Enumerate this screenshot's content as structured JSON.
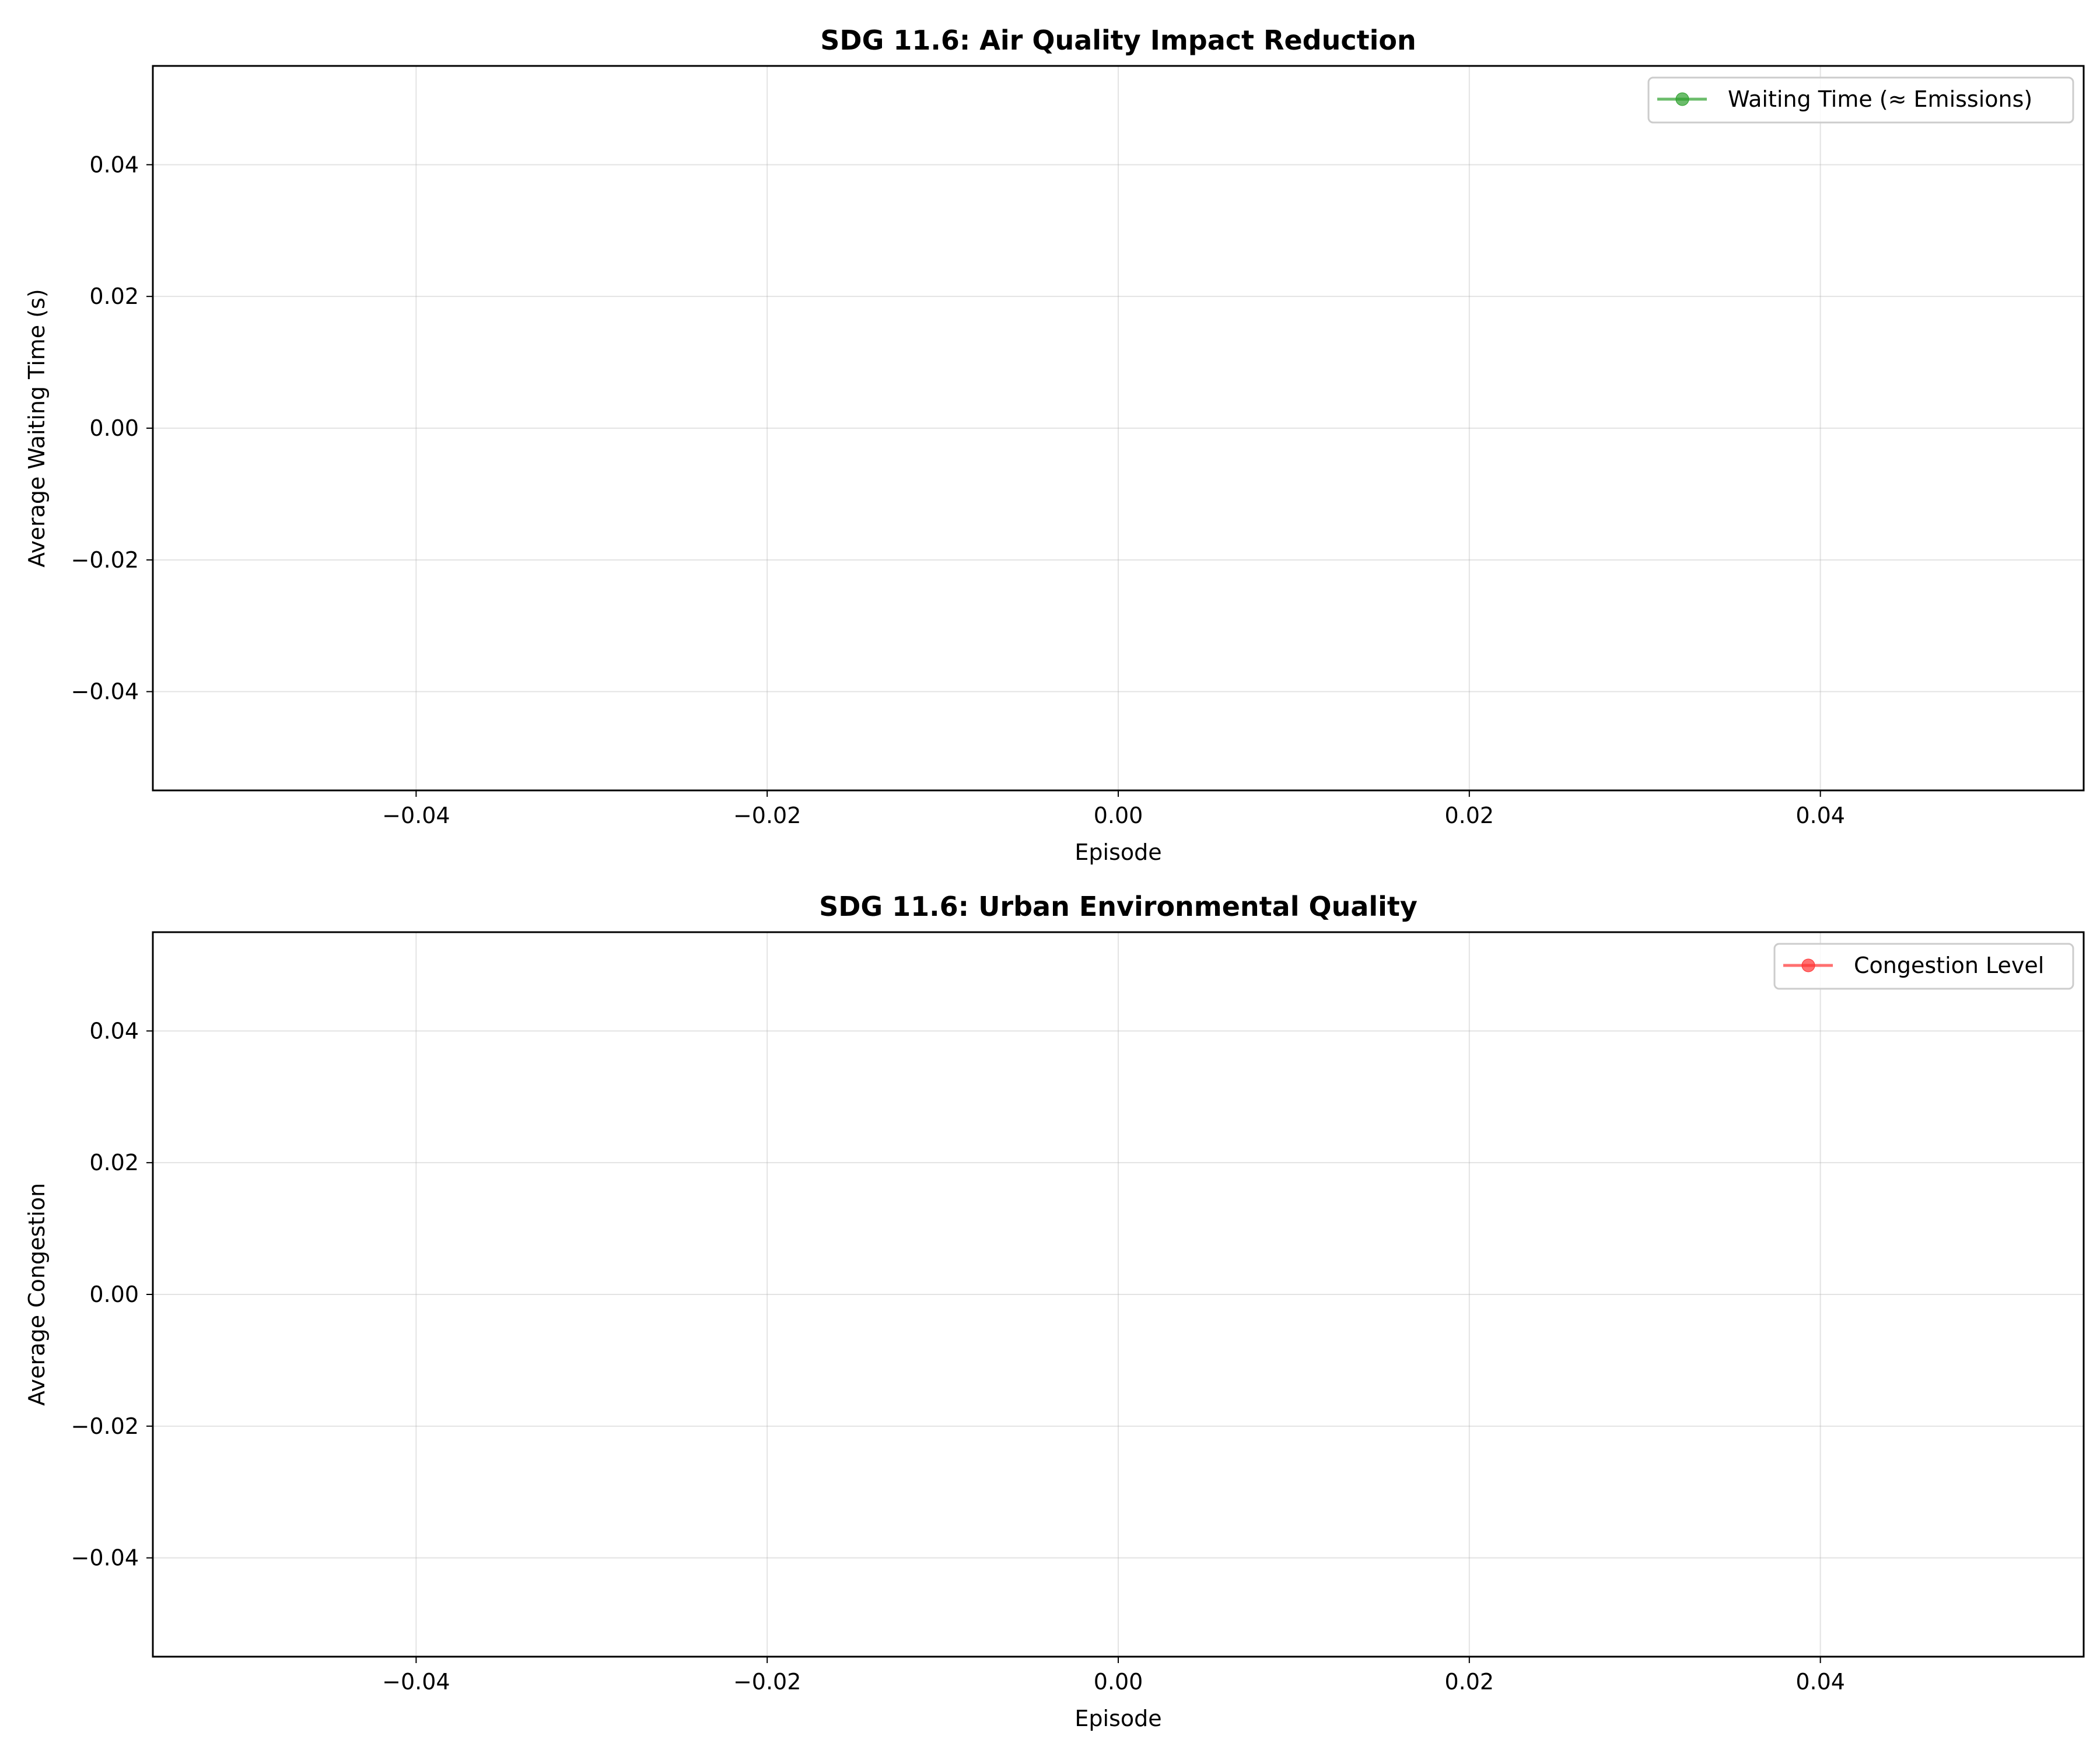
{
  "chart_data": [
    {
      "type": "line",
      "title": "SDG 11.6: Air Quality Impact Reduction",
      "xlabel": "Episode",
      "ylabel": "Average Waiting Time (s)",
      "xlim": [
        -0.055,
        0.055
      ],
      "ylim": [
        -0.055,
        0.055
      ],
      "xticks": [
        -0.04,
        -0.02,
        0.0,
        0.02,
        0.04
      ],
      "xtick_labels": [
        "−0.04",
        "−0.02",
        "0.00",
        "0.02",
        "0.04"
      ],
      "yticks": [
        -0.04,
        -0.02,
        0.0,
        0.02,
        0.04
      ],
      "ytick_labels": [
        "−0.04",
        "−0.02",
        "0.00",
        "0.02",
        "0.04"
      ],
      "grid": true,
      "legend_position": "top-right",
      "series": [
        {
          "name": "Waiting Time (≈ Emissions)",
          "color": "#2ca02c",
          "marker": "circle",
          "x": [],
          "y": []
        }
      ]
    },
    {
      "type": "line",
      "title": "SDG 11.6: Urban Environmental Quality",
      "xlabel": "Episode",
      "ylabel": "Average Congestion",
      "xlim": [
        -0.055,
        0.055
      ],
      "ylim": [
        -0.055,
        0.055
      ],
      "xticks": [
        -0.04,
        -0.02,
        0.0,
        0.02,
        0.04
      ],
      "xtick_labels": [
        "−0.04",
        "−0.02",
        "0.00",
        "0.02",
        "0.04"
      ],
      "yticks": [
        -0.04,
        -0.02,
        0.0,
        0.02,
        0.04
      ],
      "ytick_labels": [
        "−0.04",
        "−0.02",
        "0.00",
        "0.02",
        "0.04"
      ],
      "grid": true,
      "legend_position": "top-right",
      "series": [
        {
          "name": "Congestion Level",
          "color": "#ff3333",
          "marker": "circle",
          "x": [],
          "y": []
        }
      ]
    }
  ]
}
